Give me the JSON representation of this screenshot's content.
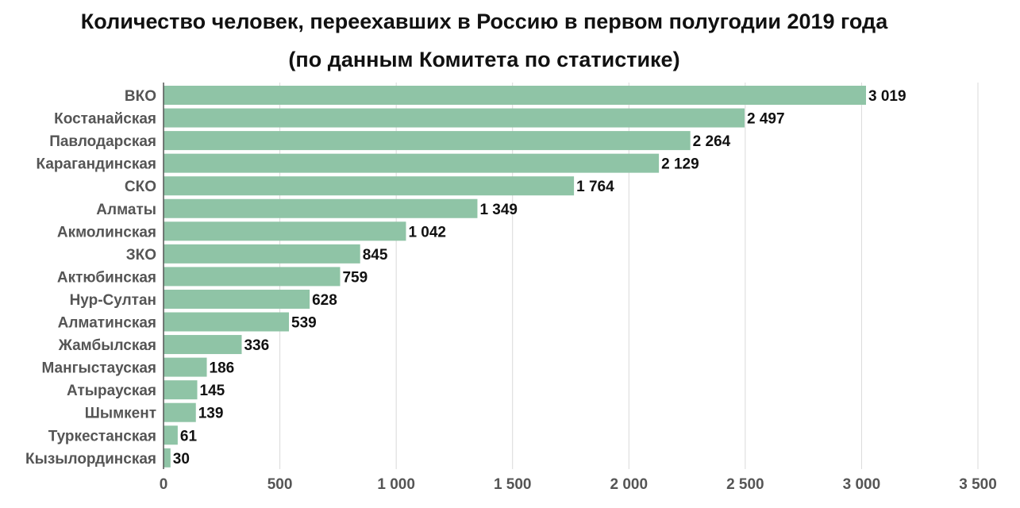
{
  "chart_data": {
    "type": "bar",
    "orientation": "horizontal",
    "title": "Количество человек, переехавших в Россию в первом полугодии 2019 года",
    "subtitle": "(по данным Комитета по статистике)",
    "xlabel": "",
    "ylabel": "",
    "xlim": [
      0,
      3500
    ],
    "xticks": [
      0,
      500,
      1000,
      1500,
      2000,
      2500,
      3000,
      3500
    ],
    "xtick_labels": [
      "0",
      "500",
      "1 000",
      "1 500",
      "2 000",
      "2 500",
      "3 000",
      "3 500"
    ],
    "grid": true,
    "legend": "none",
    "bar_color": "#8fc4a6",
    "categories": [
      "ВКО",
      "Костанайская",
      "Павлодарская",
      "Карагандинская",
      "СКО",
      "Алматы",
      "Акмолинская",
      "ЗКО",
      "Актюбинская",
      "Нур-Султан",
      "Алматинская",
      "Жамбылская",
      "Мангыстауская",
      "Атырауская",
      "Шымкент",
      "Туркестанская",
      "Кызылординская"
    ],
    "values": [
      3019,
      2497,
      2264,
      2129,
      1764,
      1349,
      1042,
      845,
      759,
      628,
      539,
      336,
      186,
      145,
      139,
      61,
      30
    ],
    "value_labels": [
      "3 019",
      "2 497",
      "2 264",
      "2 129",
      "1 764",
      "1 349",
      "1 042",
      "845",
      "759",
      "628",
      "539",
      "336",
      "186",
      "145",
      "139",
      "61",
      "30"
    ]
  }
}
